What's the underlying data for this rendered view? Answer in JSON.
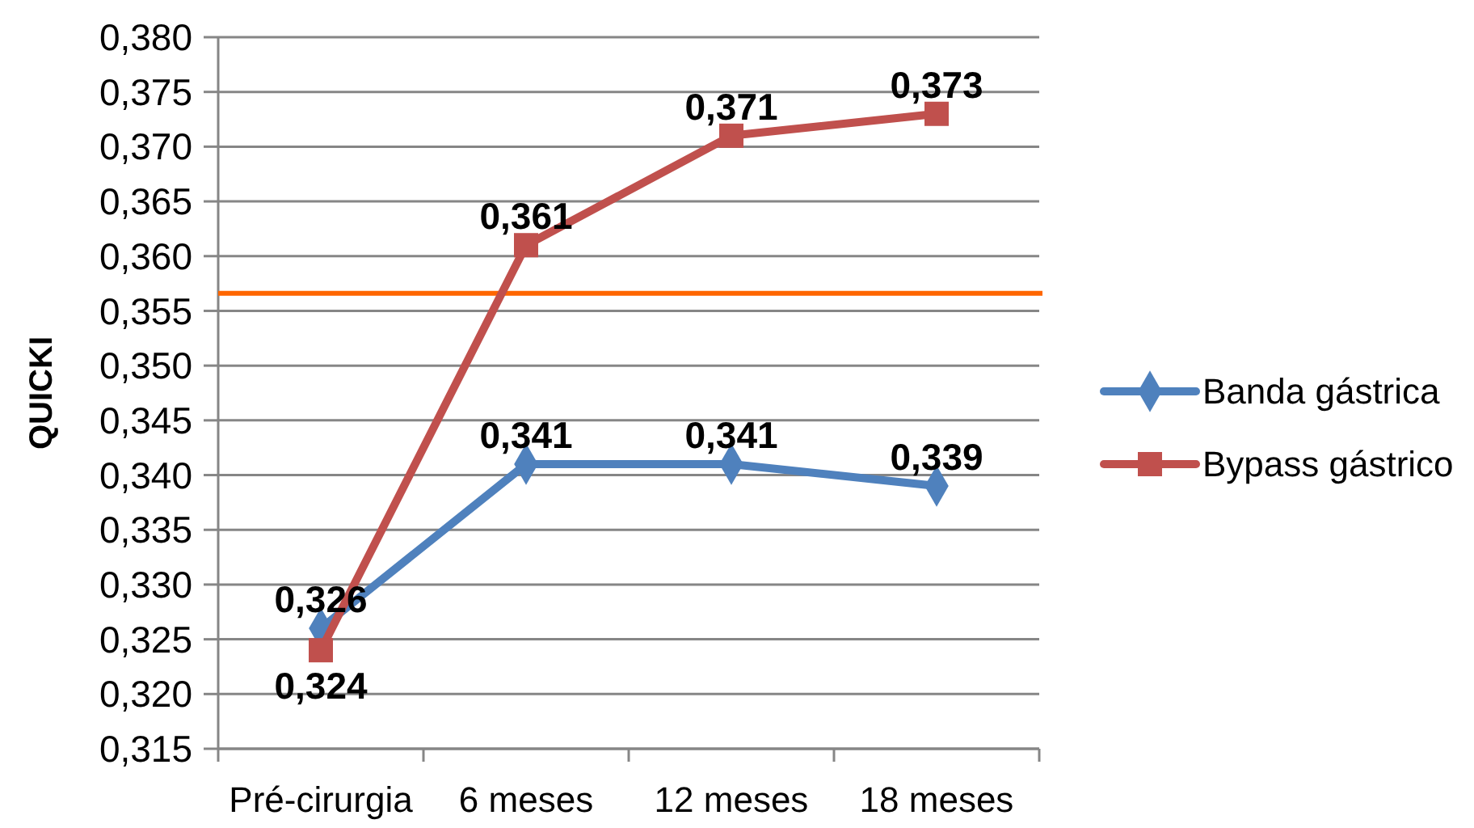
{
  "chart_data": {
    "type": "line",
    "ylabel": "QUICKI",
    "categories": [
      "Pré-cirurgia",
      "6 meses",
      "12 meses",
      "18 meses"
    ],
    "series": [
      {
        "name": "Banda gástrica",
        "color": "#4f81bd",
        "marker": "diamond",
        "values": [
          0.326,
          0.341,
          0.341,
          0.339
        ],
        "value_labels": [
          "0,326",
          "0,341",
          "0,341",
          "0,339"
        ]
      },
      {
        "name": "Bypass gástrico",
        "color": "#c0504d",
        "marker": "square",
        "values": [
          0.324,
          0.361,
          0.371,
          0.373
        ],
        "value_labels": [
          "0,324",
          "0,361",
          "0,371",
          "0,373"
        ]
      }
    ],
    "ylim": [
      0.315,
      0.38
    ],
    "yticks": [
      {
        "value": 0.315,
        "label": "0,315"
      },
      {
        "value": 0.32,
        "label": "0,320"
      },
      {
        "value": 0.325,
        "label": "0,325"
      },
      {
        "value": 0.33,
        "label": "0,330"
      },
      {
        "value": 0.335,
        "label": "0,335"
      },
      {
        "value": 0.34,
        "label": "0,340"
      },
      {
        "value": 0.345,
        "label": "0,345"
      },
      {
        "value": 0.35,
        "label": "0,350"
      },
      {
        "value": 0.355,
        "label": "0,355"
      },
      {
        "value": 0.36,
        "label": "0,360"
      },
      {
        "value": 0.365,
        "label": "0,365"
      },
      {
        "value": 0.37,
        "label": "0,370"
      },
      {
        "value": 0.375,
        "label": "0,375"
      },
      {
        "value": 0.38,
        "label": "0,380"
      }
    ],
    "ref_lines": [
      {
        "axis": "y",
        "value": 0.3566,
        "color": "#ff6600"
      }
    ],
    "grid": "y",
    "legend": "right",
    "line_style": "solid"
  }
}
